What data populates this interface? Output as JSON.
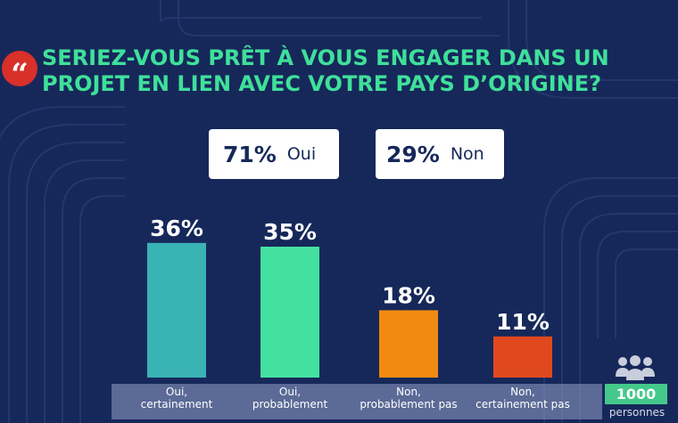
{
  "question": {
    "line1": "SERIEZ-VOUS PRÊT À VOUS ENGAGER DANS UN",
    "line2": "PROJET EN LIEN AVEC VOTRE PAYS D’ORIGINE?",
    "quote_icon": "quote-icon"
  },
  "summary": {
    "oui": {
      "percent": "71%",
      "label": "Oui"
    },
    "non": {
      "percent": "29%",
      "label": "Non"
    }
  },
  "chart_data": {
    "type": "bar",
    "categories": [
      "Oui, certainement",
      "Oui, probablement",
      "Non, probablement pas",
      "Non, certainement pas"
    ],
    "category_lines": [
      [
        "Oui,",
        "certainement"
      ],
      [
        "Oui,",
        "probablement"
      ],
      [
        "Non,",
        "probablement pas"
      ],
      [
        "Non,",
        "certainement pas"
      ]
    ],
    "values": [
      36,
      35,
      18,
      11
    ],
    "value_labels": [
      "36%",
      "35%",
      "18%",
      "11%"
    ],
    "colors": [
      "#3ab3b5",
      "#44e0a0",
      "#f28a12",
      "#e0491e"
    ],
    "ylim": [
      0,
      40
    ],
    "grid": false,
    "legend": "none"
  },
  "sample": {
    "icon": "people-icon",
    "count": "1000",
    "unit": "personnes"
  },
  "colors": {
    "background": "#16285a",
    "title": "#3fe09a",
    "accent": "#d9302a"
  }
}
